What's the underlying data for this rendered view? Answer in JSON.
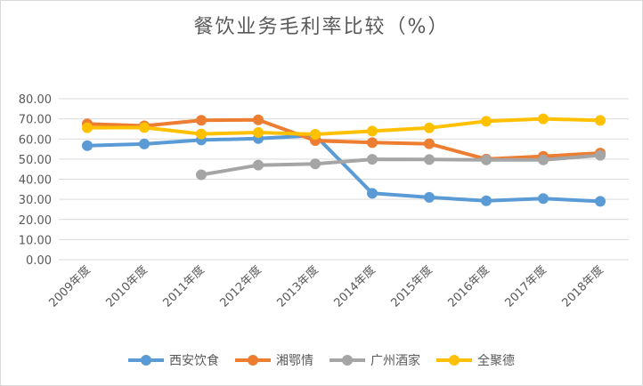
{
  "chart_data": {
    "type": "line",
    "title": "餐饮业务毛利率比较（%）",
    "xlabel": "",
    "ylabel": "",
    "ylim": [
      0,
      80
    ],
    "yticks": [
      "0.00",
      "10.00",
      "20.00",
      "30.00",
      "40.00",
      "50.00",
      "60.00",
      "70.00",
      "80.00"
    ],
    "categories": [
      "2009年度",
      "2010年度",
      "2011年度",
      "2012年度",
      "2013年度",
      "2014年度",
      "2015年度",
      "2016年度",
      "2017年度",
      "2018年度"
    ],
    "legend_position": "bottom",
    "series": [
      {
        "name": "西安饮食",
        "color": "#5b9bd5",
        "values": [
          56.7,
          57.5,
          59.5,
          60.2,
          61.8,
          33.0,
          31.0,
          29.3,
          30.4,
          29.0
        ]
      },
      {
        "name": "湘鄂情",
        "color": "#ed7d31",
        "values": [
          67.5,
          66.5,
          69.3,
          69.5,
          59.2,
          58.2,
          57.6,
          50.0,
          51.4,
          53.0
        ]
      },
      {
        "name": "广州酒家",
        "color": "#a5a5a5",
        "values": [
          null,
          null,
          42.2,
          47.0,
          47.6,
          49.9,
          49.8,
          49.6,
          49.6,
          51.9
        ]
      },
      {
        "name": "全聚德",
        "color": "#ffc000",
        "values": [
          65.6,
          65.7,
          62.5,
          63.2,
          62.3,
          63.9,
          65.5,
          68.8,
          70.0,
          69.2
        ]
      }
    ]
  }
}
